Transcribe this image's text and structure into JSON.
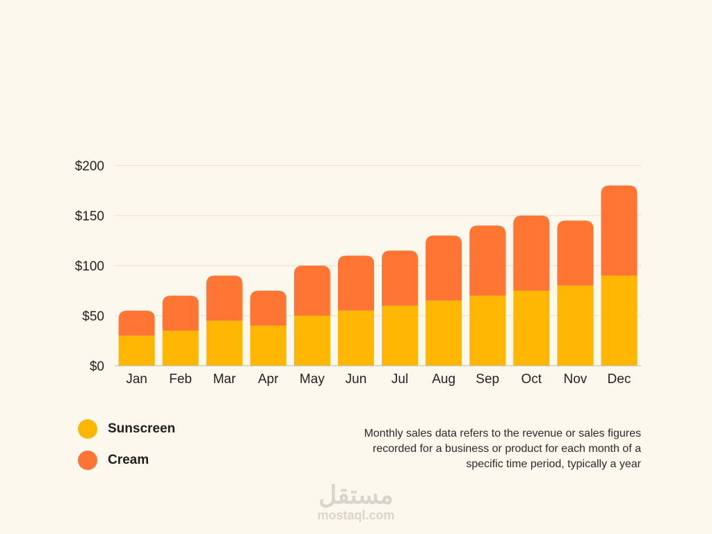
{
  "colors": {
    "background": "#fdf8ed",
    "sunscreen": "#ffb703",
    "cream": "#fe7534",
    "gridline": "#e3ddd1",
    "axis_text": "#222222"
  },
  "chart_data": {
    "type": "bar",
    "stacked": true,
    "categories": [
      "Jan",
      "Feb",
      "Mar",
      "Apr",
      "May",
      "Jun",
      "Jul",
      "Aug",
      "Sep",
      "Oct",
      "Nov",
      "Dec"
    ],
    "series": [
      {
        "name": "Sunscreen",
        "color": "#ffb703",
        "values": [
          30,
          35,
          45,
          40,
          50,
          55,
          60,
          65,
          70,
          75,
          80,
          90
        ]
      },
      {
        "name": "Cream",
        "color": "#fe7534",
        "values": [
          25,
          35,
          45,
          35,
          50,
          55,
          55,
          65,
          70,
          75,
          65,
          90
        ]
      }
    ],
    "y_ticks": [
      0,
      50,
      100,
      150,
      200
    ],
    "y_tick_labels": [
      "$0",
      "$50",
      "$100",
      "$150",
      "$200"
    ],
    "ylim": [
      0,
      200
    ],
    "grid": true,
    "legend_position": "bottom-left"
  },
  "legend": {
    "items": [
      {
        "label": "Sunscreen",
        "color": "#ffb703"
      },
      {
        "label": "Cream",
        "color": "#fe7534"
      }
    ]
  },
  "caption": {
    "text": "Monthly sales data refers to the revenue or sales figures recorded for a business or product for each month of a specific time period, typically a year"
  },
  "watermark": {
    "logo": "مستقل",
    "url": "mostaql.com"
  }
}
